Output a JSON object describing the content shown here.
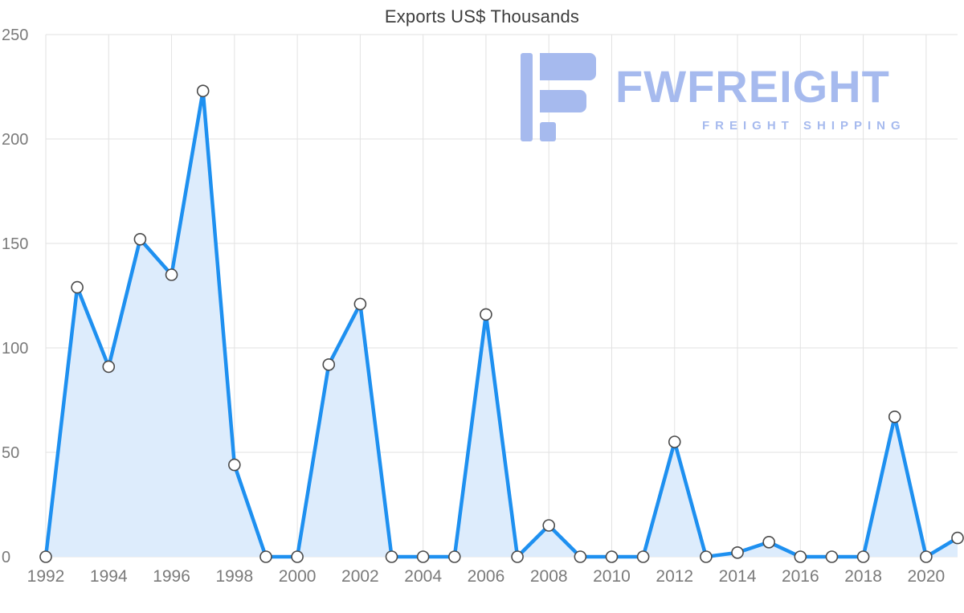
{
  "page": {
    "title": "Exports US$ Thousands"
  },
  "watermark": {
    "brand": "FWFREIGHT",
    "tagline": "FREIGHT SHIPPING",
    "color": "#a6baee"
  },
  "chart_data": {
    "type": "area",
    "title": "Exports US$ Thousands",
    "x": [
      1992,
      1993,
      1994,
      1995,
      1996,
      1997,
      1998,
      1999,
      2000,
      2001,
      2002,
      2003,
      2004,
      2005,
      2006,
      2007,
      2008,
      2009,
      2010,
      2011,
      2012,
      2013,
      2014,
      2015,
      2016,
      2017,
      2018,
      2019,
      2020,
      2021
    ],
    "values": [
      0,
      129,
      91,
      152,
      135,
      223,
      44,
      0,
      0,
      92,
      121,
      0,
      0,
      0,
      116,
      0,
      15,
      0,
      0,
      0,
      55,
      0,
      2,
      7,
      0,
      0,
      0,
      67,
      0,
      9
    ],
    "series_name": "Exports US$ Thousands",
    "xlabel": "",
    "ylabel": "",
    "ylim": [
      0,
      250
    ],
    "y_ticks": [
      0,
      50,
      100,
      150,
      200,
      250
    ],
    "x_ticks": [
      1992,
      1994,
      1996,
      1998,
      2000,
      2002,
      2004,
      2006,
      2008,
      2010,
      2012,
      2014,
      2016,
      2018,
      2020
    ],
    "grid": true,
    "legend": "none",
    "colors": {
      "line": "#1e90f0",
      "fill": "#ddecfc",
      "marker_fill": "#ffffff",
      "marker_stroke": "#4a4a4a",
      "grid": "#e2e2e2",
      "axis_text": "#7a7a7a"
    }
  }
}
